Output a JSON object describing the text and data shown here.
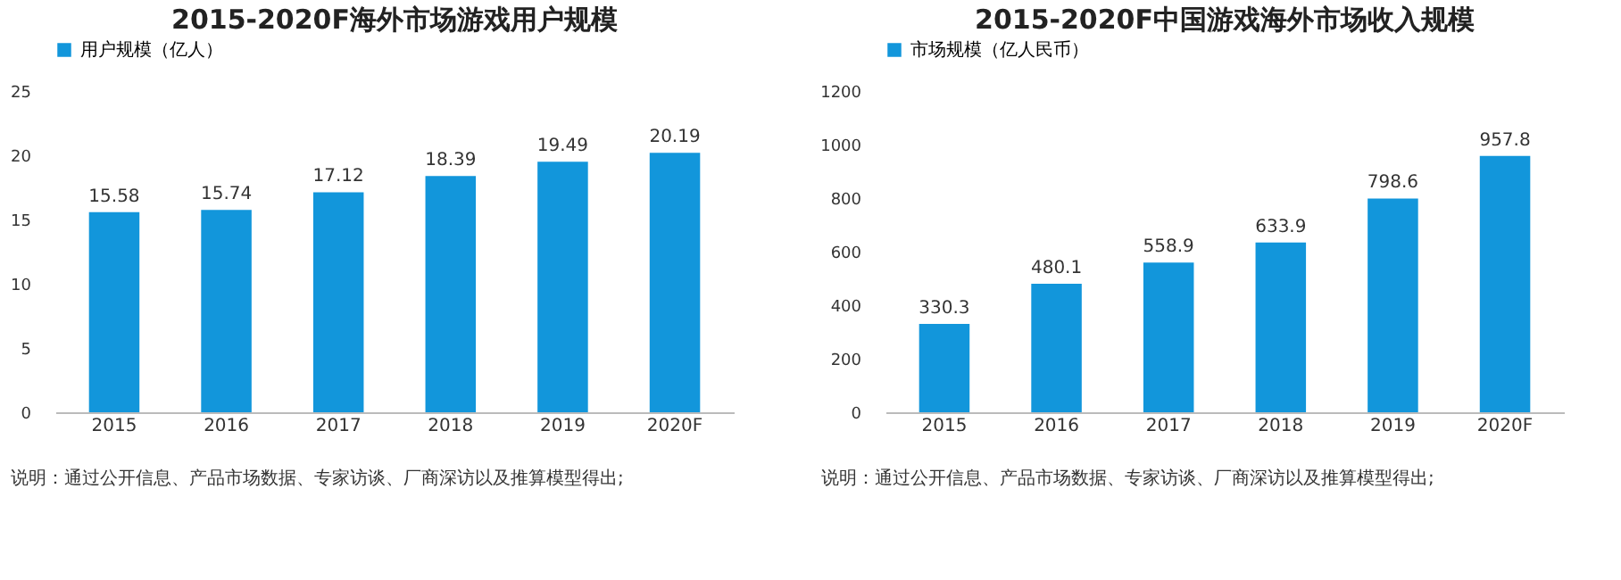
{
  "chart_data": [
    {
      "type": "bar",
      "title": "2015-2020F海外市场游戏用户规模",
      "categories": [
        "2015",
        "2016",
        "2017",
        "2018",
        "2019",
        "2020F"
      ],
      "series": [
        {
          "name": "用户规模（亿人）",
          "color": "#1296db",
          "values": [
            15.58,
            15.74,
            17.12,
            18.39,
            19.49,
            20.19
          ]
        }
      ],
      "ylim": [
        0,
        25
      ],
      "yticks": [
        0,
        5,
        10,
        15,
        20,
        25
      ],
      "data_labels": true,
      "legend": "top",
      "grid": false,
      "annotations": [
        "说明：通过公开信息、产品市场数据、专家访谈、厂商深访以及推算模型得出;"
      ]
    },
    {
      "type": "bar",
      "title": "2015-2020F中国游戏海外市场收入规模",
      "categories": [
        "2015",
        "2016",
        "2017",
        "2018",
        "2019",
        "2020F"
      ],
      "series": [
        {
          "name": "市场规模（亿人民币）",
          "color": "#1296db",
          "values": [
            330.3,
            480.1,
            558.9,
            633.9,
            798.6,
            957.8
          ]
        }
      ],
      "ylim": [
        0,
        1200
      ],
      "yticks": [
        0,
        200,
        400,
        600,
        800,
        1000,
        1200
      ],
      "data_labels": true,
      "legend": "top",
      "grid": false,
      "annotations": [
        "说明：通过公开信息、产品市场数据、专家访谈、厂商深访以及推算模型得出;"
      ]
    }
  ]
}
